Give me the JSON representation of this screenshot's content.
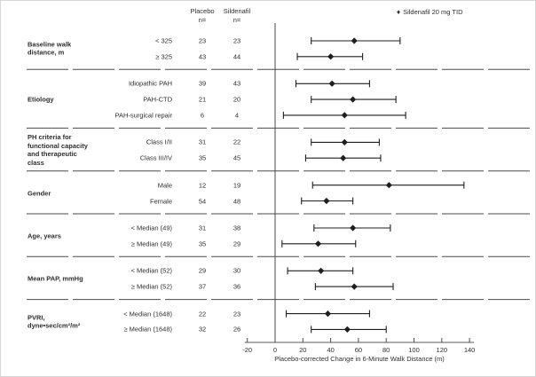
{
  "header": {
    "placebo": "Placebo",
    "sildenafil": "Sildenafil",
    "n_label": "n="
  },
  "icons": {
    "diamond": "♦"
  },
  "chart_data": {
    "type": "forest",
    "series_label": "Sildenafil 20 mg TID",
    "xlabel": "Placebo-corrected Change in 6-Minute Walk Distance (m)",
    "xlim": [
      -20,
      140
    ],
    "x_ticks": [
      -20,
      0,
      20,
      40,
      60,
      80,
      100,
      120,
      140
    ],
    "grid": false,
    "legend_position": "top-right",
    "groups": [
      {
        "label": "Baseline walk\ndistance, m",
        "rows": [
          {
            "subgroup": "< 325",
            "placebo_n": "23",
            "sildenafil_n": "23",
            "estimate": 57,
            "ci_low": 26,
            "ci_high": 90
          },
          {
            "subgroup": "≥ 325",
            "placebo_n": "43",
            "sildenafil_n": "44",
            "estimate": 40,
            "ci_low": 16,
            "ci_high": 63
          }
        ]
      },
      {
        "label": "Etiology",
        "rows": [
          {
            "subgroup": "Idiopathic PAH",
            "placebo_n": "39",
            "sildenafil_n": "43",
            "estimate": 41,
            "ci_low": 15,
            "ci_high": 68
          },
          {
            "subgroup": "PAH-CTD",
            "placebo_n": "21",
            "sildenafil_n": "20",
            "estimate": 56,
            "ci_low": 26,
            "ci_high": 87
          },
          {
            "subgroup": "PAH-surgical repair",
            "placebo_n": "6",
            "sildenafil_n": "4",
            "estimate": 50,
            "ci_low": 6,
            "ci_high": 94
          }
        ]
      },
      {
        "label": "PH criteria for\nfunctional capacity\nand therapeutic\nclass",
        "rows": [
          {
            "subgroup": "Class I/II",
            "placebo_n": "31",
            "sildenafil_n": "22",
            "estimate": 50,
            "ci_low": 26,
            "ci_high": 75
          },
          {
            "subgroup": "Class III/IV",
            "placebo_n": "35",
            "sildenafil_n": "45",
            "estimate": 49,
            "ci_low": 22,
            "ci_high": 76
          }
        ]
      },
      {
        "label": "Gender",
        "rows": [
          {
            "subgroup": "Male",
            "placebo_n": "12",
            "sildenafil_n": "19",
            "estimate": 82,
            "ci_low": 27,
            "ci_high": 136
          },
          {
            "subgroup": "Female",
            "placebo_n": "54",
            "sildenafil_n": "48",
            "estimate": 37,
            "ci_low": 19,
            "ci_high": 56
          }
        ]
      },
      {
        "label": "Age, years",
        "rows": [
          {
            "subgroup": "< Median (49)",
            "placebo_n": "31",
            "sildenafil_n": "38",
            "estimate": 56,
            "ci_low": 28,
            "ci_high": 83
          },
          {
            "subgroup": "≥ Median (49)",
            "placebo_n": "35",
            "sildenafil_n": "29",
            "estimate": 31,
            "ci_low": 5,
            "ci_high": 58
          }
        ]
      },
      {
        "label": "Mean PAP, mmHg",
        "rows": [
          {
            "subgroup": "< Median (52)",
            "placebo_n": "29",
            "sildenafil_n": "30",
            "estimate": 33,
            "ci_low": 9,
            "ci_high": 56
          },
          {
            "subgroup": "≥ Median (52)",
            "placebo_n": "37",
            "sildenafil_n": "36",
            "estimate": 57,
            "ci_low": 29,
            "ci_high": 85
          }
        ]
      },
      {
        "label": "PVRI,\ndyne•sec/cm²/m²",
        "rows": [
          {
            "subgroup": "< Median (1648)",
            "placebo_n": "22",
            "sildenafil_n": "23",
            "estimate": 38,
            "ci_low": 8,
            "ci_high": 68
          },
          {
            "subgroup": "≥ Median (1648)",
            "placebo_n": "32",
            "sildenafil_n": "26",
            "estimate": 52,
            "ci_low": 26,
            "ci_high": 80
          }
        ]
      }
    ]
  }
}
